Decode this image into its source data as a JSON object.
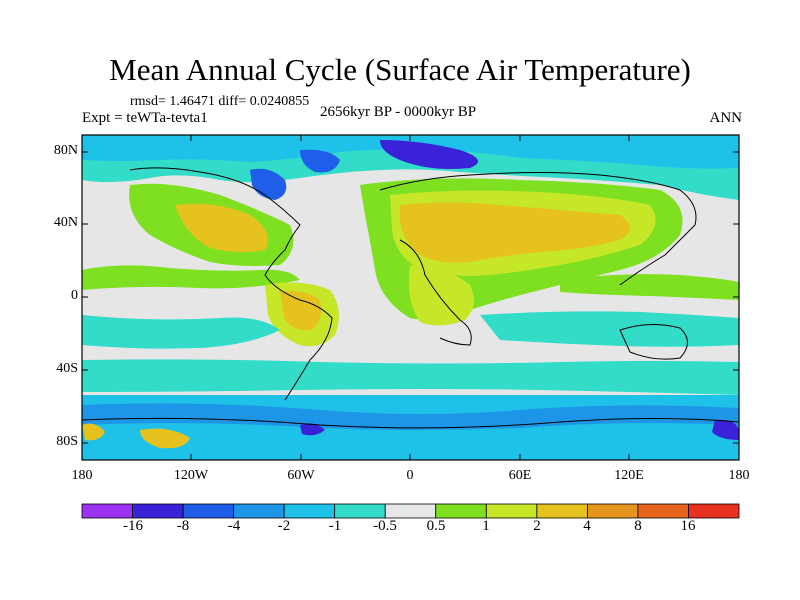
{
  "title": "Mean Annual Cycle (Surface Air Temperature)",
  "stats": "rmsd= 1.46471 diff= 0.0240855",
  "expt": "Expt = teWTa-tevta1",
  "period": "2656kyr BP - 0000kyr BP",
  "season": "ANN",
  "y_ticks": [
    "80N",
    "40N",
    "0",
    "40S",
    "80S"
  ],
  "x_ticks": [
    "180",
    "120W",
    "60W",
    "0",
    "60E",
    "120E",
    "180"
  ],
  "colorbar": {
    "labels": [
      "-16",
      "-8",
      "-4",
      "-2",
      "-1",
      "-0.5",
      "0.5",
      "1",
      "2",
      "4",
      "8",
      "16"
    ],
    "colors": [
      "#9a32f0",
      "#3a22d8",
      "#1e5ee8",
      "#1e96e8",
      "#1ec2e8",
      "#32dcc8",
      "#e6e6e6",
      "#7ee020",
      "#c6e628",
      "#e6c21e",
      "#e6961e",
      "#e6641e",
      "#e6321e"
    ]
  },
  "legend_colors": {
    "ocean_neutral": "#e6e6e6",
    "coast": "#000000"
  }
}
